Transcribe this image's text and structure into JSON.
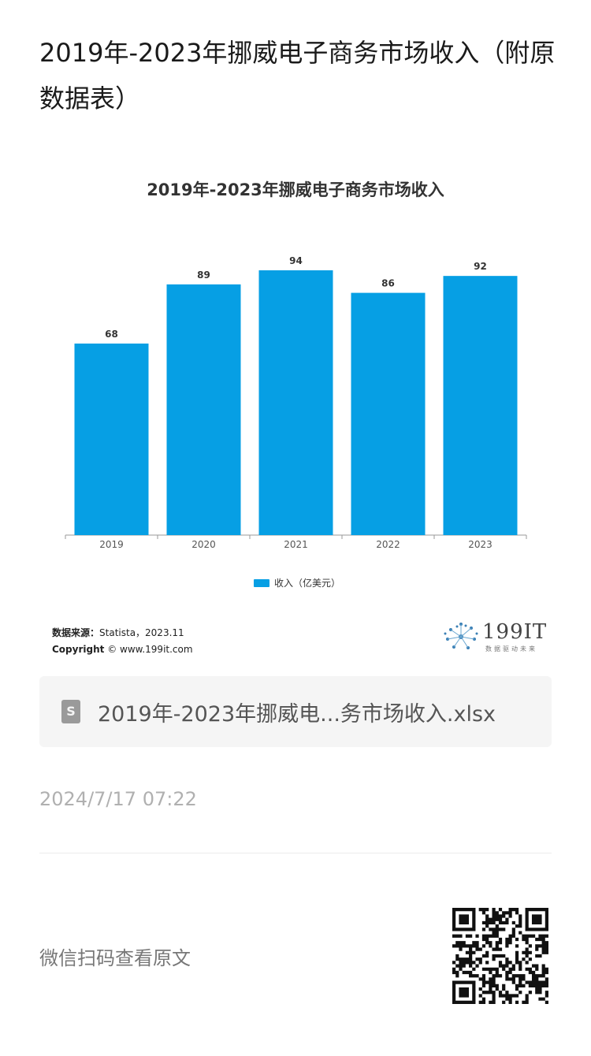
{
  "page": {
    "title": "2019年-2023年挪威电子商务市场收入（附原数据表）"
  },
  "chart_data": {
    "type": "bar",
    "title": "2019年-2023年挪威电子商务市场收入",
    "categories": [
      "2019",
      "2020",
      "2021",
      "2022",
      "2023"
    ],
    "series": [
      {
        "name": "收入（亿美元）",
        "values": [
          68,
          89,
          94,
          86,
          92
        ]
      }
    ],
    "ylim": [
      0,
      100
    ],
    "grid": false,
    "legend_position": "bottom",
    "bar_color": "#069fe4",
    "data_labels": true
  },
  "source": {
    "source_label": "数据来源：",
    "source_text": "Statista，2023.11",
    "copyright_label": "Copyright",
    "copyright_text": " © www.199it.com"
  },
  "logo": {
    "text": "199IT",
    "tagline": "数据驱动未来"
  },
  "attachment": {
    "icon": "spreadsheet-file-icon",
    "file_name": "2019年-2023年挪威电...务市场收入.xlsx"
  },
  "meta": {
    "timestamp": "2024/7/17 07:22",
    "scan_prompt": "微信扫码查看原文"
  }
}
